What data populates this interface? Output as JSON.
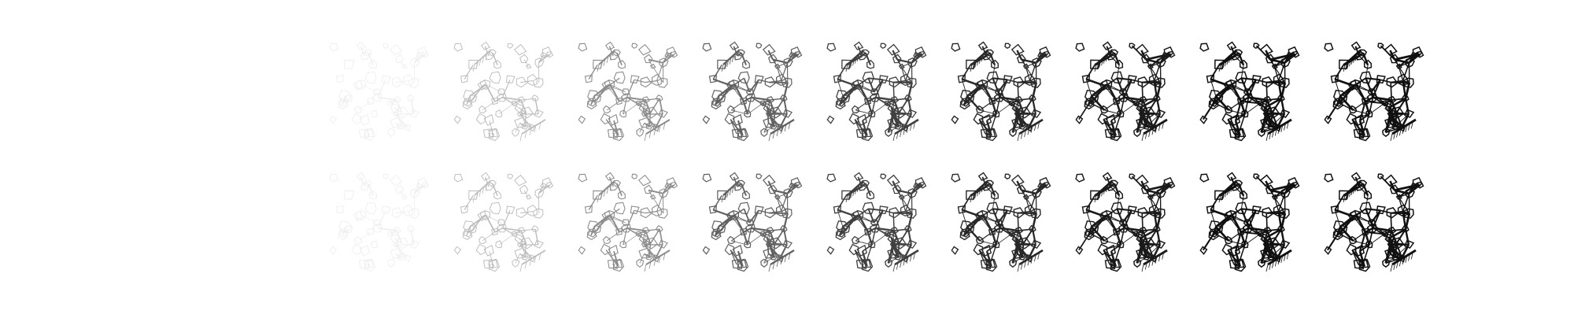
{
  "figure": {
    "description_present": false,
    "rows": 2,
    "columns": 10,
    "line_color": "#111111",
    "background_color": "#ffffff",
    "first_column_blank": true,
    "row_opacity_levels": [
      [
        0.0,
        0.07,
        0.28,
        0.48,
        0.66,
        0.8,
        0.9,
        0.96,
        1.0,
        1.0
      ],
      [
        0.0,
        0.07,
        0.28,
        0.48,
        0.66,
        0.8,
        0.9,
        0.96,
        1.0,
        1.0
      ]
    ],
    "row_detail_levels": [
      [
        0.0,
        0.3,
        0.4,
        0.55,
        0.7,
        0.8,
        0.88,
        0.95,
        1.0,
        1.0
      ],
      [
        0.0,
        0.3,
        0.4,
        0.55,
        0.7,
        0.8,
        0.88,
        0.95,
        1.0,
        1.0
      ]
    ]
  }
}
